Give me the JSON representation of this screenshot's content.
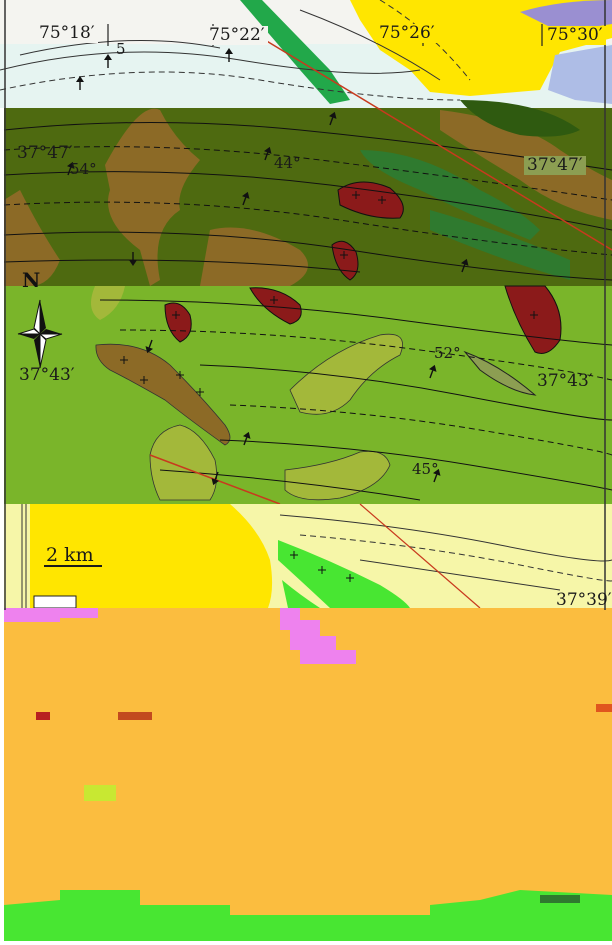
{
  "map": {
    "longitude_labels": [
      "75°18′",
      "75°22′",
      "75°26′",
      "75°30′"
    ],
    "latitude_labels": {
      "left_upper": "37°47′",
      "right_upper": "37°47′",
      "left_middle": "37°43′",
      "right_middle": "37°43′",
      "right_lower": "37°39′"
    },
    "dip_angles": [
      "54°",
      "44°",
      "52°",
      "45°",
      "5"
    ],
    "north_label": "N",
    "scale_label": "2 km",
    "colors": {
      "top_band": "#e6f4f1",
      "upper_band": "#4e6a10",
      "middle_band": "#7ab52a",
      "lower_band": "#f6f6a8",
      "bottom_band": "#fbbd3f",
      "bottom_green": "#48e632",
      "brown_unit": "#8c6a26",
      "granite_red": "#8b1a1a",
      "dark_green_belt": "#2f7a2f",
      "bright_green_belt": "#22a84a",
      "yellow_area": "#ffe600",
      "blue_area": "#aebde6",
      "lavender_area": "#9a8fd1",
      "fault_red": "#c83a1e",
      "magenta_artifact": "#ee82ee"
    }
  }
}
